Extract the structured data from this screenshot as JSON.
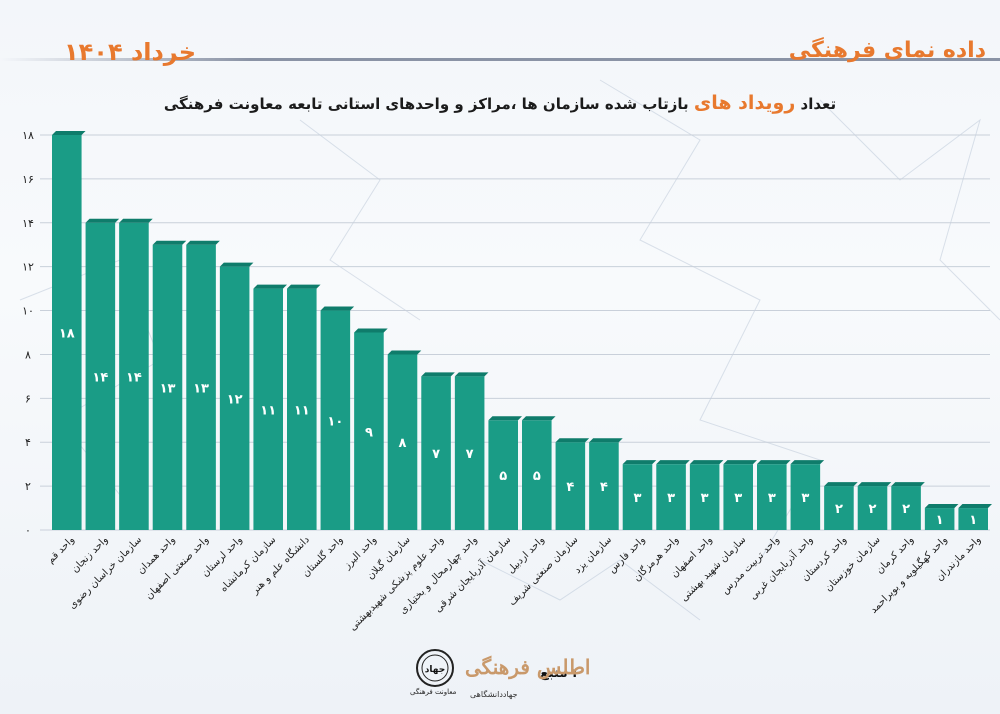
{
  "header": {
    "brand": "داده نمای فرهنگی",
    "date": "خرداد ۱۴۰۴"
  },
  "title": {
    "before": "تعداد",
    "highlight": "رویداد های",
    "after": "بازتاب شده سازمان ها ،مراکز و واحدهای استانی  تابعه معاونت فرهنگی"
  },
  "footer": {
    "source_label": "منبع :",
    "atlas_logo_text": "اطلس فرهنگی",
    "atlas_caption": "جهاددانشگاهی",
    "jihad_logo_text": "جهاد",
    "jihad_caption": "معاونت فرهنگی"
  },
  "colors": {
    "bar": "#1a9c86",
    "bar_top": "#0f7c6b",
    "accent": "#e8792e",
    "grid": "#c9d0da"
  },
  "chart_data": {
    "type": "bar",
    "ylim": [
      0,
      18
    ],
    "yticks": [
      0,
      2,
      4,
      6,
      8,
      10,
      12,
      14,
      16,
      18
    ],
    "ytick_labels": [
      "۰",
      "۲",
      "۴",
      "۶",
      "۸",
      "۱۰",
      "۱۲",
      "۱۴",
      "۱۶",
      "۱۸"
    ],
    "grid": true,
    "categories": [
      "واحد قم",
      "واحد زنجان",
      "سازمان خراسان رضوی",
      "واحد همدان",
      "واحد صنعتی اصفهان",
      "واحد لرستان",
      "سازمان کرمانشاه",
      "دانشگاه علم و هنر",
      "واحد گلستان",
      "واحد البرز",
      "سازمان گیلان",
      "واحد علوم پزشکی شهیدبهشتی",
      "واحد چهارمحال و بختیاری",
      "سازمان آذربایجان شرقی",
      "واحد اردبیل",
      "سازمان صنعتی شریف",
      "سازمان یزد",
      "واحد فارس",
      "واحد هرمزگان",
      "واحد اصفهان",
      "سازمان شهید بهشتی",
      "واحد تربیت مدرس",
      "واحد آذربایجان غربی",
      "واحد کردستان",
      "سازمان خوزستان",
      "واحد کرمان",
      "واحد کهگیلویه و بویراحمد",
      "واحد مازندران"
    ],
    "values": [
      18,
      14,
      14,
      13,
      13,
      12,
      11,
      11,
      10,
      9,
      8,
      7,
      7,
      5,
      5,
      4,
      4,
      3,
      3,
      3,
      3,
      3,
      3,
      2,
      2,
      2,
      1,
      1
    ],
    "value_labels": [
      "۱۸",
      "۱۴",
      "۱۴",
      "۱۳",
      "۱۳",
      "۱۲",
      "۱۱",
      "۱۱",
      "۱۰",
      "۹",
      "۸",
      "۷",
      "۷",
      "۵",
      "۵",
      "۴",
      "۴",
      "۳",
      "۳",
      "۳",
      "۳",
      "۳",
      "۳",
      "۲",
      "۲",
      "۲",
      "۱",
      "۱"
    ]
  }
}
